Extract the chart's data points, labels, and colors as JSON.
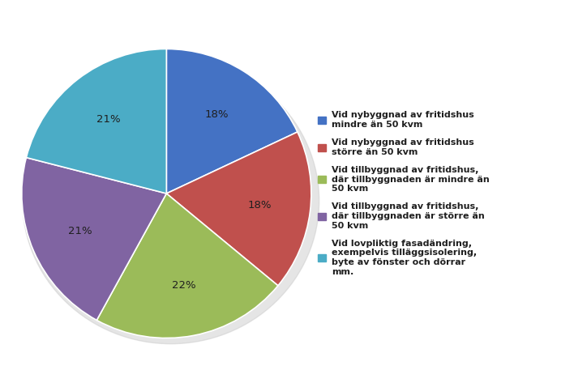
{
  "slices": [
    18,
    18,
    22,
    21,
    21
  ],
  "colors": [
    "#4472C4",
    "#C0504D",
    "#9BBB59",
    "#8064A2",
    "#4BACC6"
  ],
  "labels": [
    "Vid nybyggnad av fritidshus\nmindre än 50 kvm",
    "Vid nybyggnad av fritidshus\nstörre än 50 kvm",
    "Vid tillbyggnad av fritidshus,\ndär tillbyggnaden är mindre än\n50 kvm",
    "Vid tillbyggnad av fritidshus,\ndär tillbyggnaden är större än\n50 kvm",
    "Vid lovpliktig fasadändring,\nexempelvis tilläggsisolering,\nbyte av fönster och dörrar\nmm."
  ],
  "autopct_labels": [
    "18%",
    "18%",
    "22%",
    "21%",
    "21%"
  ],
  "startangle": 90,
  "figsize": [
    7.08,
    4.78
  ],
  "dpi": 100,
  "background_color": "#FFFFFF",
  "text_color": "#1F1F1F",
  "legend_fontsize": 8.0,
  "autopct_fontsize": 9.5,
  "shadow_color": "#CCCCCC"
}
